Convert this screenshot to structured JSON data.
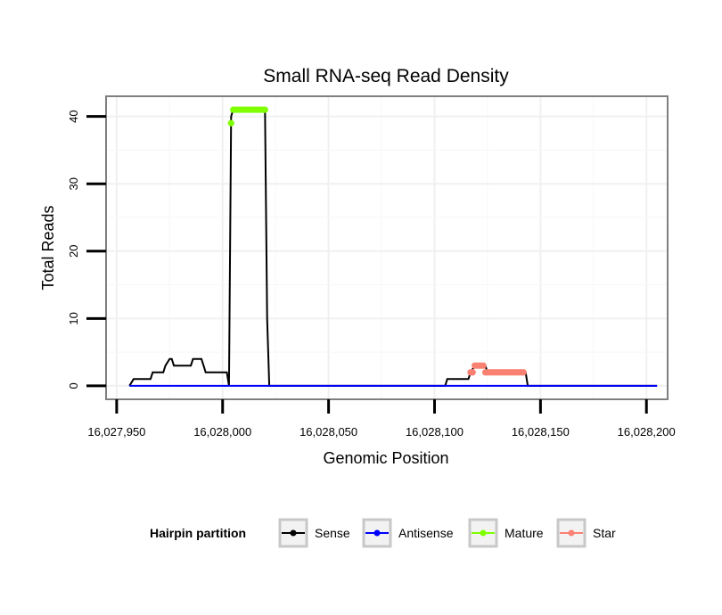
{
  "chart_data": {
    "type": "line",
    "title": "Small RNA-seq Read Density",
    "xlabel": "Genomic Position",
    "ylabel": "Total Reads",
    "xlim": [
      16027945,
      16028210
    ],
    "ylim": [
      -2,
      43
    ],
    "x_ticks": [
      16027950,
      16028000,
      16028050,
      16028100,
      16028150,
      16028200
    ],
    "x_tick_labels": [
      "16,027,950",
      "16,028,000",
      "16,028,050",
      "16,028,100",
      "16,028,150",
      "16,028,200"
    ],
    "y_ticks": [
      0,
      10,
      20,
      30,
      40
    ],
    "y_tick_labels": [
      "0",
      "10",
      "20",
      "30",
      "40"
    ],
    "grid": true,
    "legend": {
      "title": "Hairpin partition",
      "position": "bottom",
      "entries": [
        {
          "name": "Sense",
          "color": "#000000"
        },
        {
          "name": "Antisense",
          "color": "#0000ff"
        },
        {
          "name": "Mature",
          "color": "#7fff00"
        },
        {
          "name": "Star",
          "color": "#fa8072"
        }
      ]
    },
    "series": [
      {
        "name": "Sense",
        "color": "#000000",
        "markers": false,
        "points": [
          [
            16027956,
            0
          ],
          [
            16027958,
            1
          ],
          [
            16027966,
            1
          ],
          [
            16027967,
            2
          ],
          [
            16027972,
            2
          ],
          [
            16027973,
            3
          ],
          [
            16027975,
            4
          ],
          [
            16027976,
            4
          ],
          [
            16027977,
            3
          ],
          [
            16027985,
            3
          ],
          [
            16027986,
            4
          ],
          [
            16027990,
            4
          ],
          [
            16027991,
            3
          ],
          [
            16027992,
            2
          ],
          [
            16028002,
            2
          ],
          [
            16028003,
            0
          ],
          [
            16028004,
            40
          ],
          [
            16028005,
            41
          ],
          [
            16028020,
            41
          ],
          [
            16028021,
            10
          ],
          [
            16028022,
            0
          ],
          [
            16028105,
            0
          ],
          [
            16028106,
            1
          ],
          [
            16028116,
            1
          ],
          [
            16028117,
            2
          ],
          [
            16028119,
            3
          ],
          [
            16028124,
            3
          ],
          [
            16028125,
            2
          ],
          [
            16028143,
            2
          ],
          [
            16028144,
            0
          ],
          [
            16028205,
            0
          ]
        ]
      },
      {
        "name": "Antisense",
        "color": "#0000ff",
        "markers": false,
        "points": [
          [
            16027956,
            0
          ],
          [
            16028205,
            0
          ]
        ]
      },
      {
        "name": "Mature",
        "color": "#7fff00",
        "markers": true,
        "points": [
          [
            16028004,
            39
          ],
          [
            16028005,
            41
          ],
          [
            16028006,
            41
          ],
          [
            16028007,
            41
          ],
          [
            16028008,
            41
          ],
          [
            16028009,
            41
          ],
          [
            16028010,
            41
          ],
          [
            16028011,
            41
          ],
          [
            16028012,
            41
          ],
          [
            16028013,
            41
          ],
          [
            16028014,
            41
          ],
          [
            16028015,
            41
          ],
          [
            16028016,
            41
          ],
          [
            16028017,
            41
          ],
          [
            16028018,
            41
          ],
          [
            16028019,
            41
          ],
          [
            16028020,
            41
          ]
        ]
      },
      {
        "name": "Star",
        "color": "#fa8072",
        "markers": true,
        "points": [
          [
            16028117,
            2
          ],
          [
            16028118,
            2
          ],
          [
            16028119,
            3
          ],
          [
            16028120,
            3
          ],
          [
            16028121,
            3
          ],
          [
            16028122,
            3
          ],
          [
            16028123,
            3
          ],
          [
            16028124,
            2
          ],
          [
            16028125,
            2
          ],
          [
            16028126,
            2
          ],
          [
            16028127,
            2
          ],
          [
            16028128,
            2
          ],
          [
            16028129,
            2
          ],
          [
            16028130,
            2
          ],
          [
            16028131,
            2
          ],
          [
            16028132,
            2
          ],
          [
            16028133,
            2
          ],
          [
            16028134,
            2
          ],
          [
            16028135,
            2
          ],
          [
            16028136,
            2
          ],
          [
            16028137,
            2
          ],
          [
            16028138,
            2
          ],
          [
            16028139,
            2
          ],
          [
            16028140,
            2
          ],
          [
            16028141,
            2
          ],
          [
            16028142,
            2
          ]
        ]
      }
    ]
  }
}
